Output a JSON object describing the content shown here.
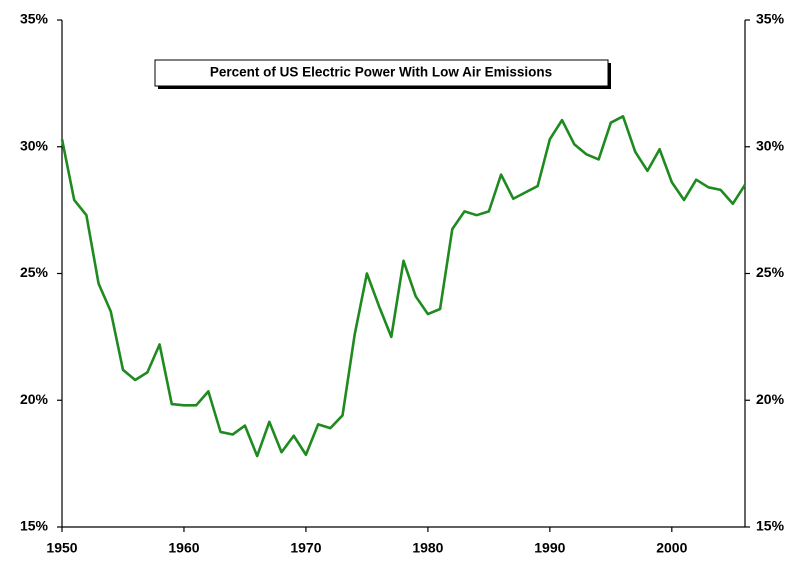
{
  "chart_data": {
    "type": "line",
    "title": "Percent of US Electric Power With Low Air Emissions",
    "x": [
      1950,
      1951,
      1952,
      1953,
      1954,
      1955,
      1956,
      1957,
      1958,
      1959,
      1960,
      1961,
      1962,
      1963,
      1964,
      1965,
      1966,
      1967,
      1968,
      1969,
      1970,
      1971,
      1972,
      1973,
      1974,
      1975,
      1976,
      1977,
      1978,
      1979,
      1980,
      1981,
      1982,
      1983,
      1984,
      1985,
      1986,
      1987,
      1988,
      1989,
      1990,
      1991,
      1992,
      1993,
      1994,
      1995,
      1996,
      1997,
      1998,
      1999,
      2000,
      2001,
      2002,
      2003,
      2004,
      2005,
      2006
    ],
    "series": [
      {
        "color": "#1f8a1f",
        "values": [
          30.3,
          27.9,
          27.3,
          24.6,
          23.5,
          21.2,
          20.8,
          21.1,
          22.2,
          19.85,
          19.8,
          19.8,
          20.35,
          18.75,
          18.65,
          19.0,
          17.8,
          19.15,
          17.95,
          18.6,
          17.85,
          19.05,
          18.9,
          19.4,
          22.6,
          25.0,
          23.7,
          22.5,
          25.5,
          24.1,
          23.4,
          23.6,
          26.75,
          27.45,
          27.3,
          27.45,
          28.9,
          27.95,
          28.2,
          28.45,
          30.3,
          31.05,
          30.1,
          29.7,
          29.5,
          30.95,
          31.2,
          29.8,
          29.05,
          29.9,
          28.6,
          27.9,
          28.7,
          28.4,
          28.3,
          27.75,
          28.5
        ]
      }
    ],
    "xlim": [
      1950,
      2006
    ],
    "xticks": [
      1950,
      1960,
      1970,
      1980,
      1990,
      2000
    ],
    "ylim": [
      15,
      35
    ],
    "yticks": [
      {
        "value": 15,
        "label": "15%"
      },
      {
        "value": 20,
        "label": "20%"
      },
      {
        "value": 25,
        "label": "25%"
      },
      {
        "value": 30,
        "label": "30%"
      },
      {
        "value": 35,
        "label": "35%"
      }
    ],
    "y2lim": [
      15,
      35
    ],
    "y2ticks": [
      {
        "value": 15,
        "label": "15%"
      },
      {
        "value": 20,
        "label": "20%"
      },
      {
        "value": 25,
        "label": "25%"
      },
      {
        "value": 30,
        "label": "30%"
      },
      {
        "value": 35,
        "label": "35%"
      }
    ],
    "grid": false
  }
}
